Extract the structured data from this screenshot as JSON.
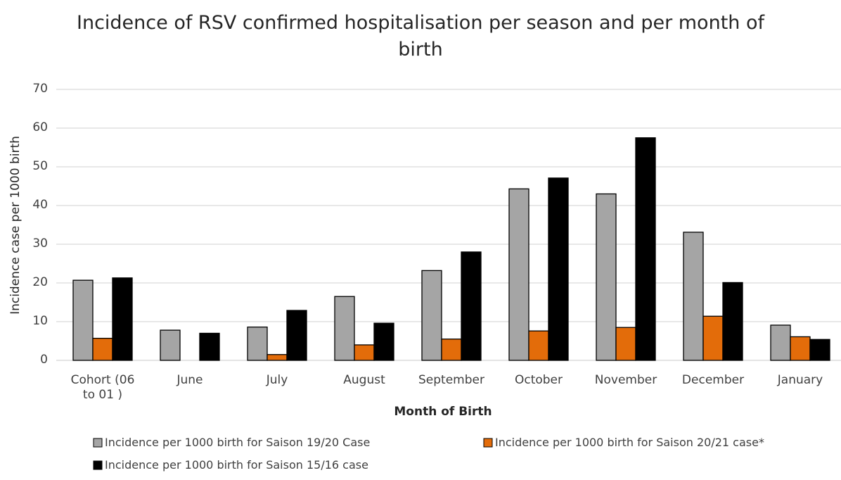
{
  "chart_data": {
    "type": "bar",
    "title": "Incidence of RSV confirmed hospitalisation per season and per month of birth",
    "x_label": "Month of Birth",
    "y_label": "Incidence case per 1000 birth",
    "categories": [
      "Cohort (06 to 01 )",
      "June",
      "July",
      "August",
      "September",
      "October",
      "November",
      "December",
      "January"
    ],
    "series": [
      {
        "name": "Incidence per 1000 birth for Saison 19/20 Case",
        "color": "#a5a5a5",
        "values": [
          20.7,
          7.8,
          8.6,
          16.5,
          23.2,
          44.3,
          43.0,
          33.1,
          9.1
        ]
      },
      {
        "name": "Incidence per 1000 birth for Saison 20/21 case*",
        "color": "#e36c0a",
        "values": [
          5.7,
          null,
          1.5,
          4.0,
          5.5,
          7.6,
          8.5,
          11.4,
          6.1
        ]
      },
      {
        "name": "Incidence per 1000 birth for Saison 15/16 case",
        "color": "#000000",
        "values": [
          21.3,
          7.0,
          12.9,
          9.6,
          28.0,
          47.1,
          57.5,
          20.1,
          5.4
        ]
      }
    ],
    "ylim": [
      0,
      70
    ],
    "yticks": [
      0,
      10,
      20,
      30,
      40,
      50,
      60,
      70
    ],
    "grid": true,
    "legend": "bottom"
  }
}
